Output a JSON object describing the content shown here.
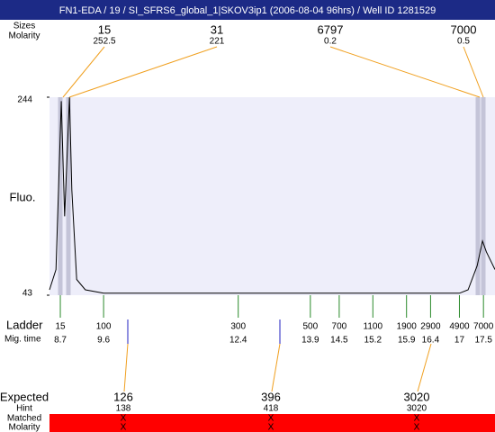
{
  "title": "FN1-EDA / 19 / SI_SFRS6_global_1|SKOV3ip1 (2006-08-04 96hrs) / Well ID 1281529",
  "peaks": {
    "size_label": "Sizes",
    "molarity_label": "Molarity",
    "sizes": [
      15,
      31,
      6797,
      7000
    ],
    "molarity": [
      252.5,
      221,
      0.2,
      0.5
    ]
  },
  "chart_data": {
    "type": "line",
    "y_label": "Fluo.",
    "x": [
      8.475,
      8.61,
      8.72,
      8.79,
      8.89,
      8.94,
      9.04,
      9.22,
      9.6,
      17.0,
      17.18,
      17.37,
      17.48,
      17.56,
      17.65,
      17.74
    ],
    "series": [
      {
        "color": "#000000",
        "values": [
          48.5,
          69,
          240,
          123,
          244,
          150,
          59,
          48.5,
          45,
          45,
          48.5,
          73,
          98,
          87,
          78,
          69
        ]
      }
    ],
    "xlim": [
      8.475,
      17.74
    ],
    "ylim": [
      43,
      244
    ],
    "yticks": [
      43,
      244
    ]
  },
  "ladder": {
    "label": "Ladder",
    "time_label": "Mig. time",
    "sizes": [
      15,
      100,
      300,
      500,
      700,
      1100,
      1900,
      2900,
      4900,
      7000
    ],
    "times": [
      8.7,
      9.6,
      12.4,
      13.9,
      14.5,
      15.2,
      15.9,
      16.4,
      17,
      17.5
    ]
  },
  "expected": {
    "label": "Expected",
    "hint_label": "Hint",
    "matched_label": "Matched",
    "molarity_label": "Molarity",
    "values": [
      126,
      396,
      3020
    ],
    "hints": [
      138,
      418,
      3020
    ],
    "matched": [
      "X",
      "X",
      "X"
    ],
    "molarity": [
      "X",
      "X",
      "X"
    ]
  }
}
